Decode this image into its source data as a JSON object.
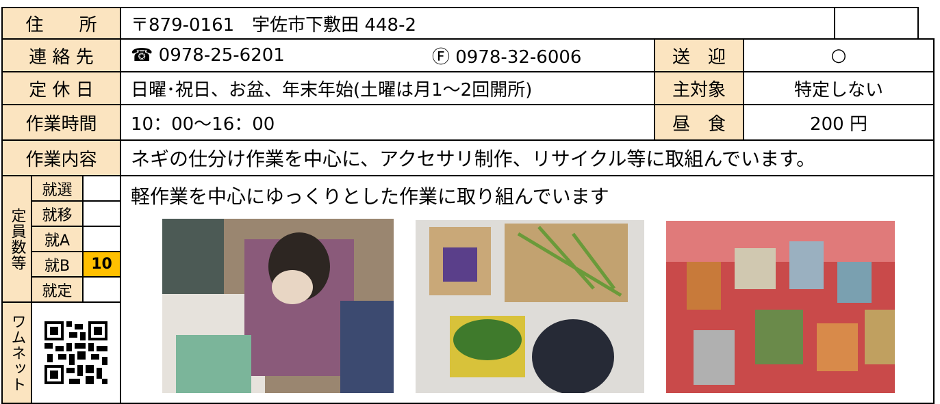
{
  "address": {
    "label": "住　　所",
    "value": "〒879-0161　宇佐市下敷田 448-2"
  },
  "contact": {
    "label": "連 絡 先",
    "tel": "☎ 0978-25-6201",
    "fax": "Ⓕ 0978-32-6006",
    "pickup_label": "送　迎",
    "pickup": "○"
  },
  "holiday": {
    "label": "定 休 日",
    "value": "日曜･祝日、お盆、年末年始(土曜は月1～2回開所)",
    "target_label": "主対象",
    "target": "特定しない"
  },
  "hours": {
    "label": "作業時間",
    "value": "10：00～16：00",
    "lunch_label": "昼　食",
    "lunch": "200 円"
  },
  "work": {
    "label": "作業内容",
    "value": "ネギの仕分け作業を中心に、アクセサリ制作、リサイクル等に取組んでいます。"
  },
  "capacity": {
    "label": "定員数等",
    "types": [
      "就選",
      "就移",
      "就A",
      "就B",
      "就定"
    ],
    "counts": [
      null,
      null,
      null,
      10,
      null
    ]
  },
  "wamnet": {
    "label": "ワムネット"
  },
  "description": "軽作業を中心にゆっくりとした作業に取り組んでいます"
}
